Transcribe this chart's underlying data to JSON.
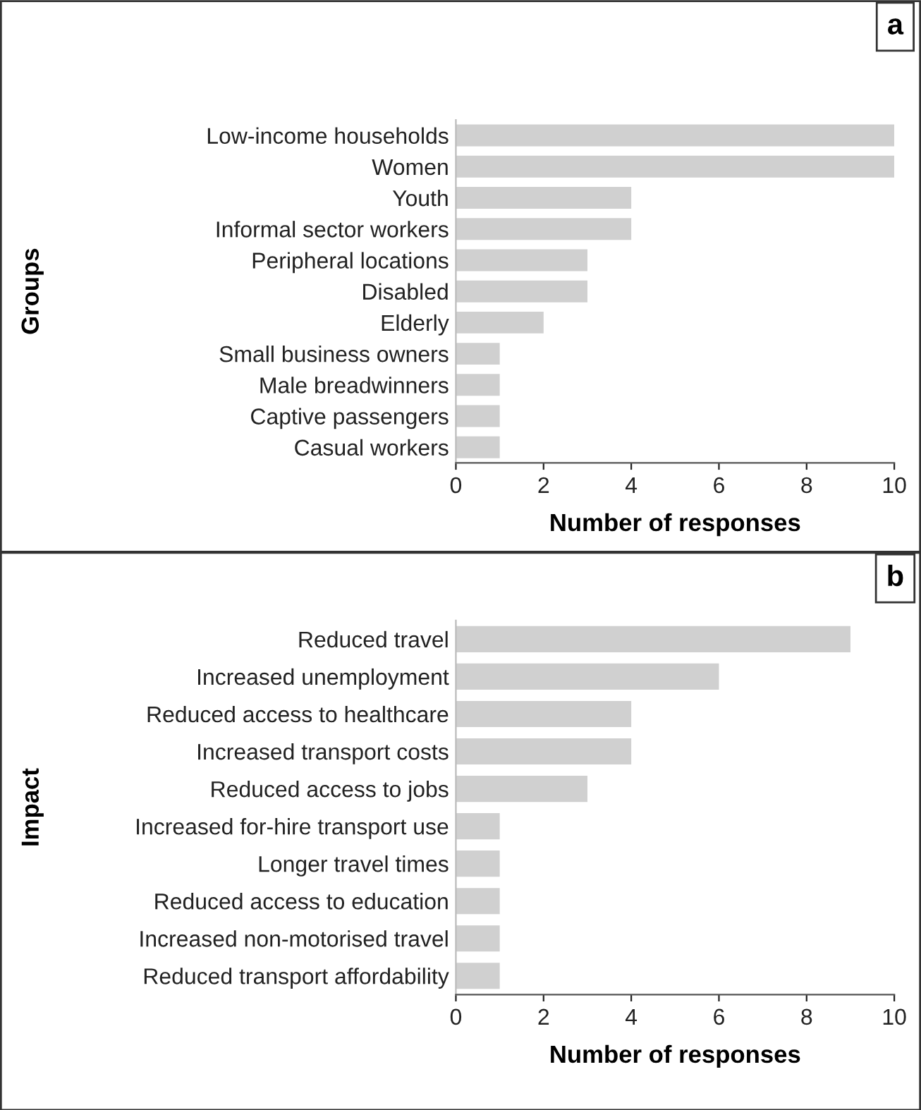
{
  "chart_data": [
    {
      "type": "bar",
      "orientation": "horizontal",
      "ylabel": "Groups",
      "xlabel": "Number of responses",
      "annotations": [
        "a"
      ],
      "categories": [
        "Low-income households",
        "Women",
        "Youth",
        "Informal sector workers",
        "Peripheral locations",
        "Disabled",
        "Elderly",
        "Small business owners",
        "Male breadwinners",
        "Captive passengers",
        "Casual workers"
      ],
      "values": [
        10,
        10,
        4,
        4,
        3,
        3,
        2,
        1,
        1,
        1,
        1
      ],
      "color": "#d0d0d0",
      "xlim": [
        0,
        10
      ],
      "xticks": [
        0,
        2,
        4,
        6,
        8,
        10
      ],
      "grid": false,
      "legend": false
    },
    {
      "type": "bar",
      "orientation": "horizontal",
      "ylabel": "Impact",
      "xlabel": "Number of responses",
      "annotations": [
        "b"
      ],
      "categories": [
        "Reduced travel",
        "Increased unemployment",
        "Reduced access to healthcare",
        "Increased transport costs",
        "Reduced access to jobs",
        "Increased for-hire transport use",
        "Longer travel times",
        "Reduced access to education",
        "Increased non-motorised travel",
        "Reduced transport affordability"
      ],
      "values": [
        9,
        6,
        4,
        4,
        3,
        1,
        1,
        1,
        1,
        1
      ],
      "color": "#d0d0d0",
      "xlim": [
        0,
        10
      ],
      "xticks": [
        0,
        2,
        4,
        6,
        8,
        10
      ],
      "grid": false,
      "legend": false
    }
  ]
}
